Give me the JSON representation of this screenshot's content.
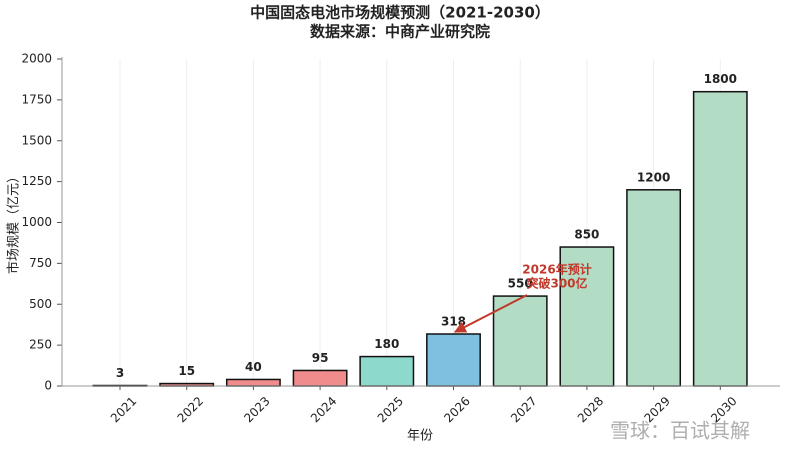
{
  "chart_data": {
    "type": "bar",
    "title": "中国固态电池市场规模预测（2021-2030）",
    "subtitle": "数据来源：中商产业研究院",
    "x_label": "年份",
    "y_label": "市场规模（亿元）",
    "categories": [
      "2021",
      "2022",
      "2023",
      "2024",
      "2025",
      "2026",
      "2027",
      "2028",
      "2029",
      "2030"
    ],
    "values": [
      3,
      15,
      40,
      95,
      180,
      318,
      550,
      850,
      1200,
      1800
    ],
    "colors": [
      "#f08c8c",
      "#f08c8c",
      "#f08c8c",
      "#f08c8c",
      "#8dd9cc",
      "#7fbfdf",
      "#b3dcc4",
      "#b3dcc4",
      "#b3dcc4",
      "#b3dcc4"
    ],
    "ylim": [
      0,
      2000
    ],
    "yticks": [
      0,
      250,
      500,
      750,
      1000,
      1250,
      1500,
      1750,
      2000
    ],
    "annotation": [
      "2026年预计",
      "突破300亿"
    ],
    "watermark": "雪球：百试其解"
  }
}
